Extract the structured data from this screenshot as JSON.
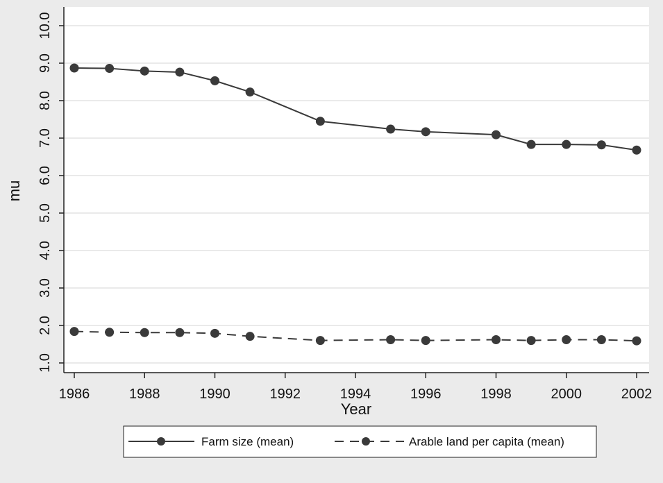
{
  "chart_data": {
    "type": "line",
    "xlabel": "Year",
    "ylabel": "mu",
    "xlim": [
      1986,
      2002
    ],
    "ylim": [
      1.0,
      10.0
    ],
    "xticks": [
      "1986",
      "1988",
      "1990",
      "1992",
      "1994",
      "1996",
      "1998",
      "2000",
      "2002"
    ],
    "yticks": [
      "1.0",
      "2.0",
      "3.0",
      "4.0",
      "5.0",
      "6.0",
      "7.0",
      "8.0",
      "9.0",
      "10.0"
    ],
    "grid": true,
    "legend_position": "bottom",
    "series": [
      {
        "name": "Farm size (mean)",
        "style": "solid",
        "color": "#3a3a3a",
        "x": [
          1986,
          1987,
          1988,
          1989,
          1990,
          1991,
          1993,
          1995,
          1996,
          1998,
          1999,
          2000,
          2001,
          2002
        ],
        "y": [
          8.87,
          8.86,
          8.79,
          8.76,
          8.53,
          8.23,
          7.45,
          7.24,
          7.17,
          7.09,
          6.83,
          6.83,
          6.82,
          6.68
        ]
      },
      {
        "name": "Arable land per capita (mean)",
        "style": "dashed",
        "color": "#3a3a3a",
        "x": [
          1986,
          1987,
          1988,
          1989,
          1990,
          1991,
          1993,
          1995,
          1996,
          1998,
          1999,
          2000,
          2001,
          2002
        ],
        "y": [
          1.84,
          1.82,
          1.81,
          1.81,
          1.79,
          1.71,
          1.6,
          1.62,
          1.6,
          1.62,
          1.6,
          1.62,
          1.62,
          1.59
        ]
      }
    ]
  }
}
